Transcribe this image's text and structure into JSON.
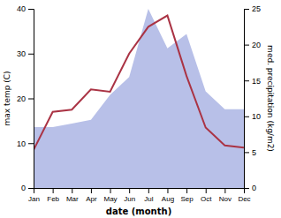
{
  "chart_data": {
    "type": "line",
    "xlabel": "date (month)",
    "ylabel": "max temp (C)",
    "y2label": "med. precipitation (kg/m2)",
    "categories": [
      "Jan",
      "Feb",
      "Mar",
      "Apr",
      "May",
      "Jun",
      "Jul",
      "Aug",
      "Sep",
      "Oct",
      "Nov",
      "Dec"
    ],
    "series": [
      {
        "type": "area",
        "axis": "y2",
        "color": "#b8c0e8",
        "values": [
          8.5,
          8.5,
          9.0,
          9.5,
          13.0,
          15.5,
          25.0,
          19.5,
          21.5,
          13.5,
          11.0,
          11.0
        ]
      },
      {
        "type": "line",
        "color": "#aa3344",
        "values": [
          8.5,
          17.0,
          17.5,
          22.0,
          21.5,
          30.0,
          36.0,
          38.5,
          25.0,
          13.5,
          9.5,
          9.0
        ]
      }
    ],
    "ylim": [
      0,
      40
    ],
    "yticks": [
      0,
      10,
      20,
      30,
      40
    ],
    "y2lim": [
      0,
      25
    ],
    "y2ticks": [
      0,
      5,
      10,
      15,
      20,
      25
    ],
    "grid": false
  }
}
